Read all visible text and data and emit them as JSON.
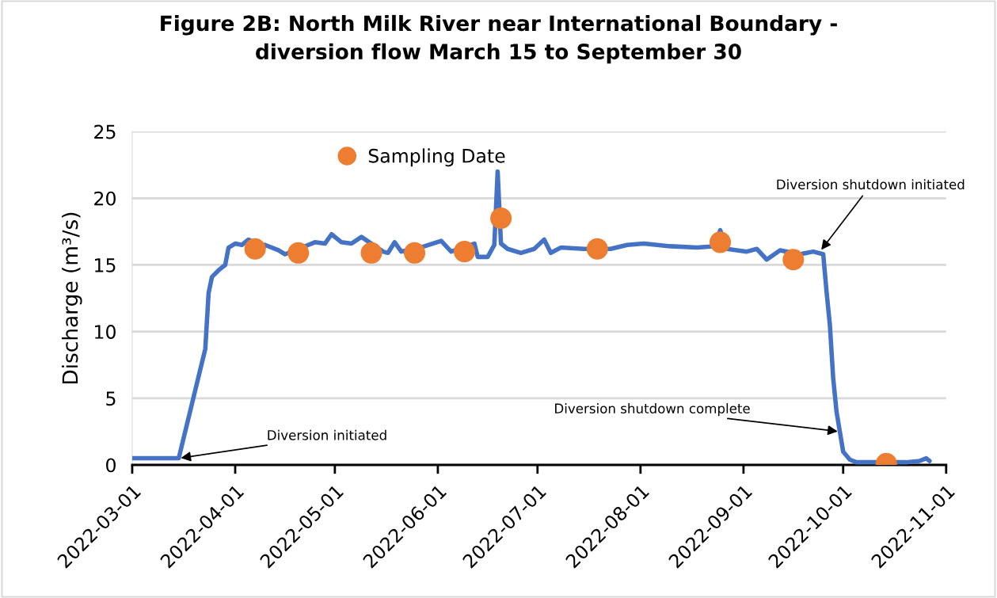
{
  "chart_data": {
    "type": "line",
    "title": "Figure 2B: North Milk River near International Boundary -\ndiversion flow March 15 to September 30",
    "ylabel": "Discharge (m³/s)",
    "xlim": [
      "2022-03-01",
      "2022-11-01"
    ],
    "xticks": [
      "2022-03-01",
      "2022-04-01",
      "2022-05-01",
      "2022-06-01",
      "2022-07-01",
      "2022-08-01",
      "2022-09-01",
      "2022-10-01",
      "2022-11-01"
    ],
    "ylim": [
      0,
      25
    ],
    "yticks": [
      0,
      5,
      10,
      15,
      20,
      25
    ],
    "grid": "y",
    "legend": "top",
    "series": [
      {
        "color": "#4472c4",
        "marker": "none",
        "line_style": "solid",
        "x": [
          "2022-03-01",
          "2022-03-15",
          "2022-03-23",
          "2022-03-23T12:00",
          "2022-03-24",
          "2022-03-25",
          "2022-03-27",
          "2022-03-29",
          "2022-03-30",
          "2022-04-01",
          "2022-04-03",
          "2022-04-05",
          "2022-04-09T12:00",
          "2022-04-10",
          "2022-04-14",
          "2022-04-16",
          "2022-04-23",
          "2022-04-25",
          "2022-04-28",
          "2022-04-30",
          "2022-05-03",
          "2022-05-06",
          "2022-05-09",
          "2022-05-15T12:00",
          "2022-05-17",
          "2022-05-19",
          "2022-05-21",
          "2022-05-28",
          "2022-06-02",
          "2022-06-05",
          "2022-06-12",
          "2022-06-13",
          "2022-06-16",
          "2022-06-18",
          "2022-06-19",
          "2022-06-20",
          "2022-06-22",
          "2022-06-26",
          "2022-06-30",
          "2022-07-03",
          "2022-07-05",
          "2022-07-08",
          "2022-07-15",
          "2022-07-23",
          "2022-07-28",
          "2022-08-02",
          "2022-08-10",
          "2022-08-18",
          "2022-08-23",
          "2022-08-25",
          "2022-08-27",
          "2022-09-02",
          "2022-09-05",
          "2022-09-08",
          "2022-09-12",
          "2022-09-18",
          "2022-09-22",
          "2022-09-25",
          "2022-09-26",
          "2022-09-27",
          "2022-09-28",
          "2022-09-29",
          "2022-09-30",
          "2022-10-01",
          "2022-10-03",
          "2022-10-05",
          "2022-10-20",
          "2022-10-24",
          "2022-10-26",
          "2022-10-27"
        ],
        "values": [
          0.5,
          0.5,
          8.7,
          10.8,
          12.9,
          14.1,
          14.6,
          15.0,
          16.3,
          16.6,
          16.5,
          16.9,
          16.3,
          16.5,
          16.1,
          15.8,
          16.5,
          16.7,
          16.6,
          17.3,
          16.7,
          16.6,
          17.1,
          16.0,
          15.9,
          16.7,
          16.0,
          16.4,
          16.8,
          16.0,
          16.6,
          15.6,
          15.6,
          16.5,
          22.0,
          16.6,
          16.2,
          15.9,
          16.2,
          16.9,
          15.9,
          16.3,
          16.2,
          16.2,
          16.5,
          16.6,
          16.4,
          16.3,
          16.4,
          17.6,
          16.2,
          16.0,
          16.2,
          15.4,
          16.1,
          15.8,
          16.0,
          15.8,
          13.0,
          10.5,
          6.5,
          4.0,
          2.5,
          1.0,
          0.4,
          0.2,
          0.2,
          0.3,
          0.5,
          0.3
        ]
      },
      {
        "type": "scatter",
        "name": "Sampling Date",
        "color": "#ed7d31",
        "marker": "circle",
        "x": [
          "2022-04-07",
          "2022-04-20",
          "2022-05-12",
          "2022-05-25",
          "2022-06-09",
          "2022-06-20",
          "2022-07-19",
          "2022-08-25",
          "2022-09-16",
          "2022-10-14"
        ],
        "values": [
          16.2,
          15.9,
          15.9,
          15.9,
          16.0,
          18.5,
          16.2,
          16.7,
          15.4,
          0.1
        ]
      }
    ],
    "annotations": [
      {
        "text": "Diversion initiated",
        "x": "2022-03-15",
        "y": 0.5
      },
      {
        "text": "Diversion shutdown initiated",
        "x": "2022-09-24",
        "y": 16.0
      },
      {
        "text": "Diversion shutdown complete",
        "x": "2022-09-30",
        "y": 2.5
      }
    ]
  }
}
